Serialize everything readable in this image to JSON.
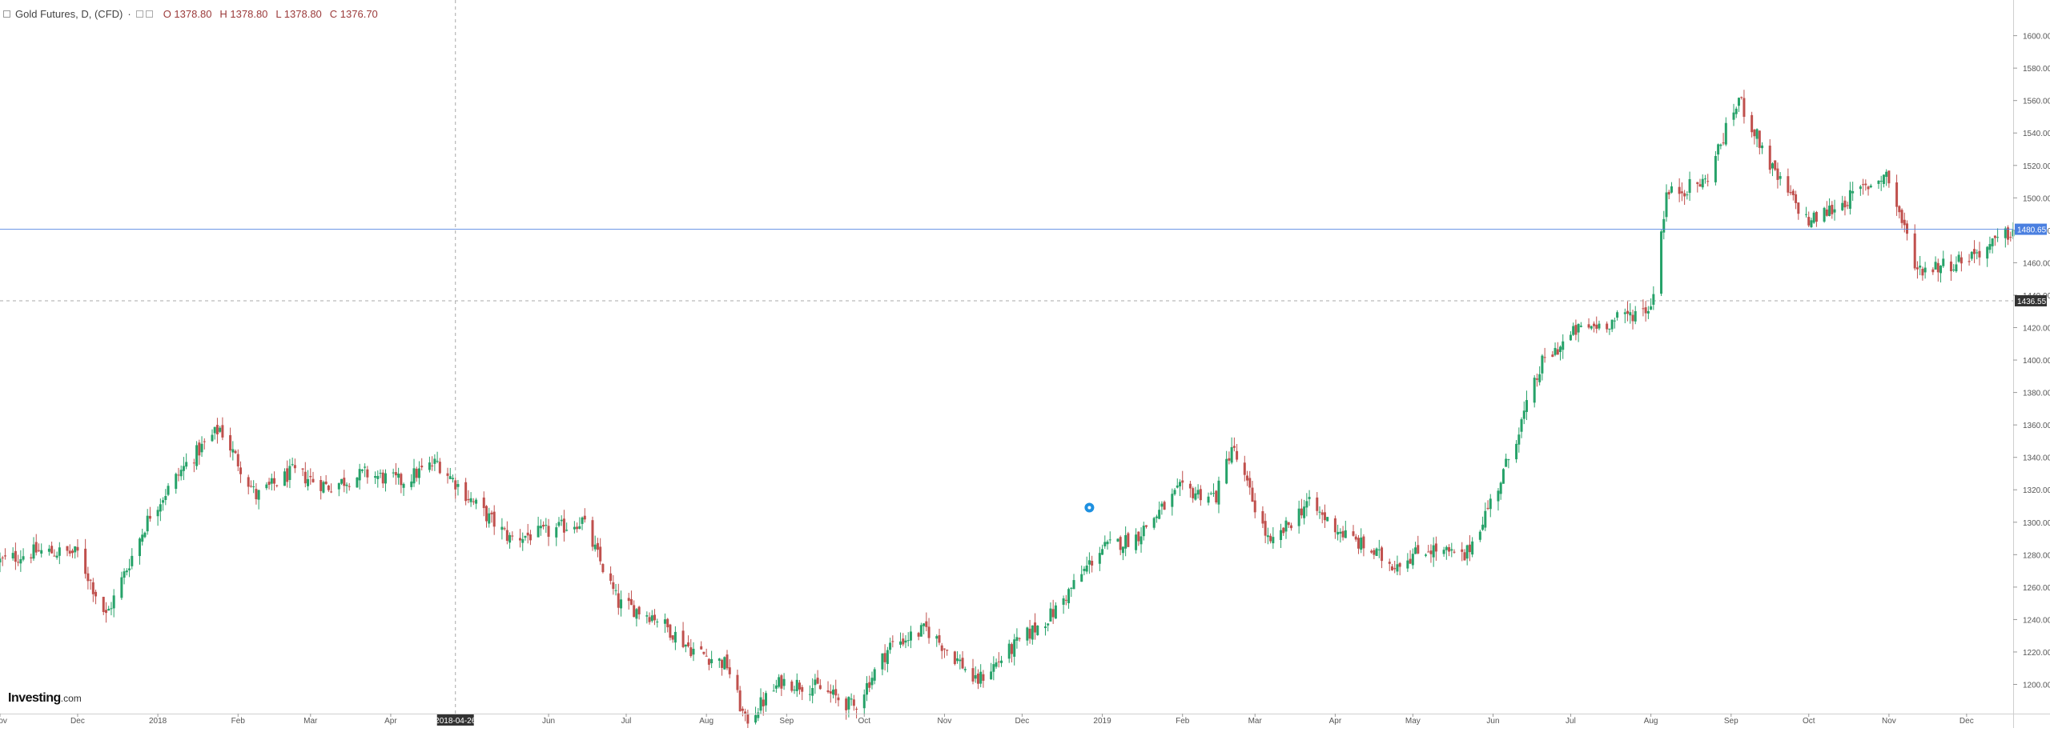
{
  "legend": {
    "title": "Gold Futures, D, (CFD)",
    "open": "O 1378.80",
    "high": "H 1378.80",
    "low": "L 1378.80",
    "close": "C 1376.70"
  },
  "logo": {
    "brand": "Investing",
    "domain": ".com"
  },
  "colors": {
    "up": "#26a269",
    "down": "#c0504d",
    "price_line": "#4a7fe0",
    "crosshair": "#aaaaaa",
    "axis_bg": "#ffffff",
    "badge_dark": "#333333",
    "event_marker": "#1e90e0"
  },
  "markers": {
    "crosshair_date": "2018-04-26",
    "crosshair_price": "1436.55",
    "last_price": "1480.65",
    "event_icon": "event-marker-icon"
  },
  "chart_data": {
    "type": "candlestick",
    "title": "Gold Futures, D, (CFD)",
    "y_range": [
      1182,
      1622
    ],
    "y_ticks": [
      1200.0,
      1220.0,
      1240.0,
      1260.0,
      1280.0,
      1300.0,
      1320.0,
      1340.0,
      1360.0,
      1380.0,
      1400.0,
      1420.0,
      1440.0,
      1460.0,
      1480.0,
      1500.0,
      1520.0,
      1540.0,
      1560.0,
      1580.0,
      1600.0
    ],
    "x_range": [
      "2017-11-01",
      "2019-12-19"
    ],
    "x_labels": [
      {
        "label": "Nov",
        "date": "2017-11-01"
      },
      {
        "label": "Dec",
        "date": "2017-12-01"
      },
      {
        "label": "2018",
        "date": "2018-01-01"
      },
      {
        "label": "Feb",
        "date": "2018-02-01"
      },
      {
        "label": "Mar",
        "date": "2018-03-01"
      },
      {
        "label": "Apr",
        "date": "2018-04-01"
      },
      {
        "label": "Jun",
        "date": "2018-06-01"
      },
      {
        "label": "Jul",
        "date": "2018-07-01"
      },
      {
        "label": "Aug",
        "date": "2018-08-01"
      },
      {
        "label": "Sep",
        "date": "2018-09-01"
      },
      {
        "label": "Oct",
        "date": "2018-10-01"
      },
      {
        "label": "Nov",
        "date": "2018-11-01"
      },
      {
        "label": "Dec",
        "date": "2018-12-01"
      },
      {
        "label": "2019",
        "date": "2019-01-01"
      },
      {
        "label": "Feb",
        "date": "2019-02-01"
      },
      {
        "label": "Mar",
        "date": "2019-03-01"
      },
      {
        "label": "Apr",
        "date": "2019-04-01"
      },
      {
        "label": "May",
        "date": "2019-05-01"
      },
      {
        "label": "Jun",
        "date": "2019-06-01"
      },
      {
        "label": "Jul",
        "date": "2019-07-01"
      },
      {
        "label": "Aug",
        "date": "2019-08-01"
      },
      {
        "label": "Sep",
        "date": "2019-09-01"
      },
      {
        "label": "Oct",
        "date": "2019-10-01"
      },
      {
        "label": "Nov",
        "date": "2019-11-01"
      },
      {
        "label": "Dec",
        "date": "2019-12-01"
      }
    ],
    "series_close": [
      [
        "2017-11-01",
        1276
      ],
      [
        "2017-11-15",
        1282
      ],
      [
        "2017-12-01",
        1281
      ],
      [
        "2017-12-12",
        1242
      ],
      [
        "2017-12-29",
        1305
      ],
      [
        "2018-01-12",
        1336
      ],
      [
        "2018-01-25",
        1358
      ],
      [
        "2018-02-08",
        1316
      ],
      [
        "2018-02-22",
        1331
      ],
      [
        "2018-03-08",
        1322
      ],
      [
        "2018-03-22",
        1330
      ],
      [
        "2018-04-05",
        1325
      ],
      [
        "2018-04-19",
        1337
      ],
      [
        "2018-05-03",
        1312
      ],
      [
        "2018-05-17",
        1290
      ],
      [
        "2018-06-01",
        1294
      ],
      [
        "2018-06-14",
        1301
      ],
      [
        "2018-06-28",
        1250
      ],
      [
        "2018-07-12",
        1242
      ],
      [
        "2018-07-26",
        1222
      ],
      [
        "2018-08-09",
        1212
      ],
      [
        "2018-08-16",
        1177
      ],
      [
        "2018-08-30",
        1202
      ],
      [
        "2018-09-13",
        1198
      ],
      [
        "2018-09-27",
        1186
      ],
      [
        "2018-10-11",
        1224
      ],
      [
        "2018-10-25",
        1234
      ],
      [
        "2018-11-08",
        1212
      ],
      [
        "2018-11-13",
        1201
      ],
      [
        "2018-11-29",
        1225
      ],
      [
        "2018-12-13",
        1244
      ],
      [
        "2018-12-31",
        1283
      ],
      [
        "2019-01-14",
        1291
      ],
      [
        "2019-01-31",
        1320
      ],
      [
        "2019-02-14",
        1316
      ],
      [
        "2019-02-20",
        1347
      ],
      [
        "2019-03-07",
        1285
      ],
      [
        "2019-03-21",
        1312
      ],
      [
        "2019-04-04",
        1293
      ],
      [
        "2019-04-23",
        1274
      ],
      [
        "2019-05-07",
        1284
      ],
      [
        "2019-05-21",
        1278
      ],
      [
        "2019-06-04",
        1326
      ],
      [
        "2019-06-20",
        1398
      ],
      [
        "2019-07-03",
        1418
      ],
      [
        "2019-07-17",
        1424
      ],
      [
        "2019-08-01",
        1433
      ],
      [
        "2019-08-07",
        1502
      ],
      [
        "2019-08-22",
        1510
      ],
      [
        "2019-09-04",
        1561
      ],
      [
        "2019-09-18",
        1514
      ],
      [
        "2019-10-01",
        1485
      ],
      [
        "2019-10-15",
        1498
      ],
      [
        "2019-10-31",
        1515
      ],
      [
        "2019-11-12",
        1456
      ],
      [
        "2019-11-26",
        1460
      ],
      [
        "2019-12-10",
        1470
      ],
      [
        "2019-12-19",
        1480
      ]
    ]
  }
}
